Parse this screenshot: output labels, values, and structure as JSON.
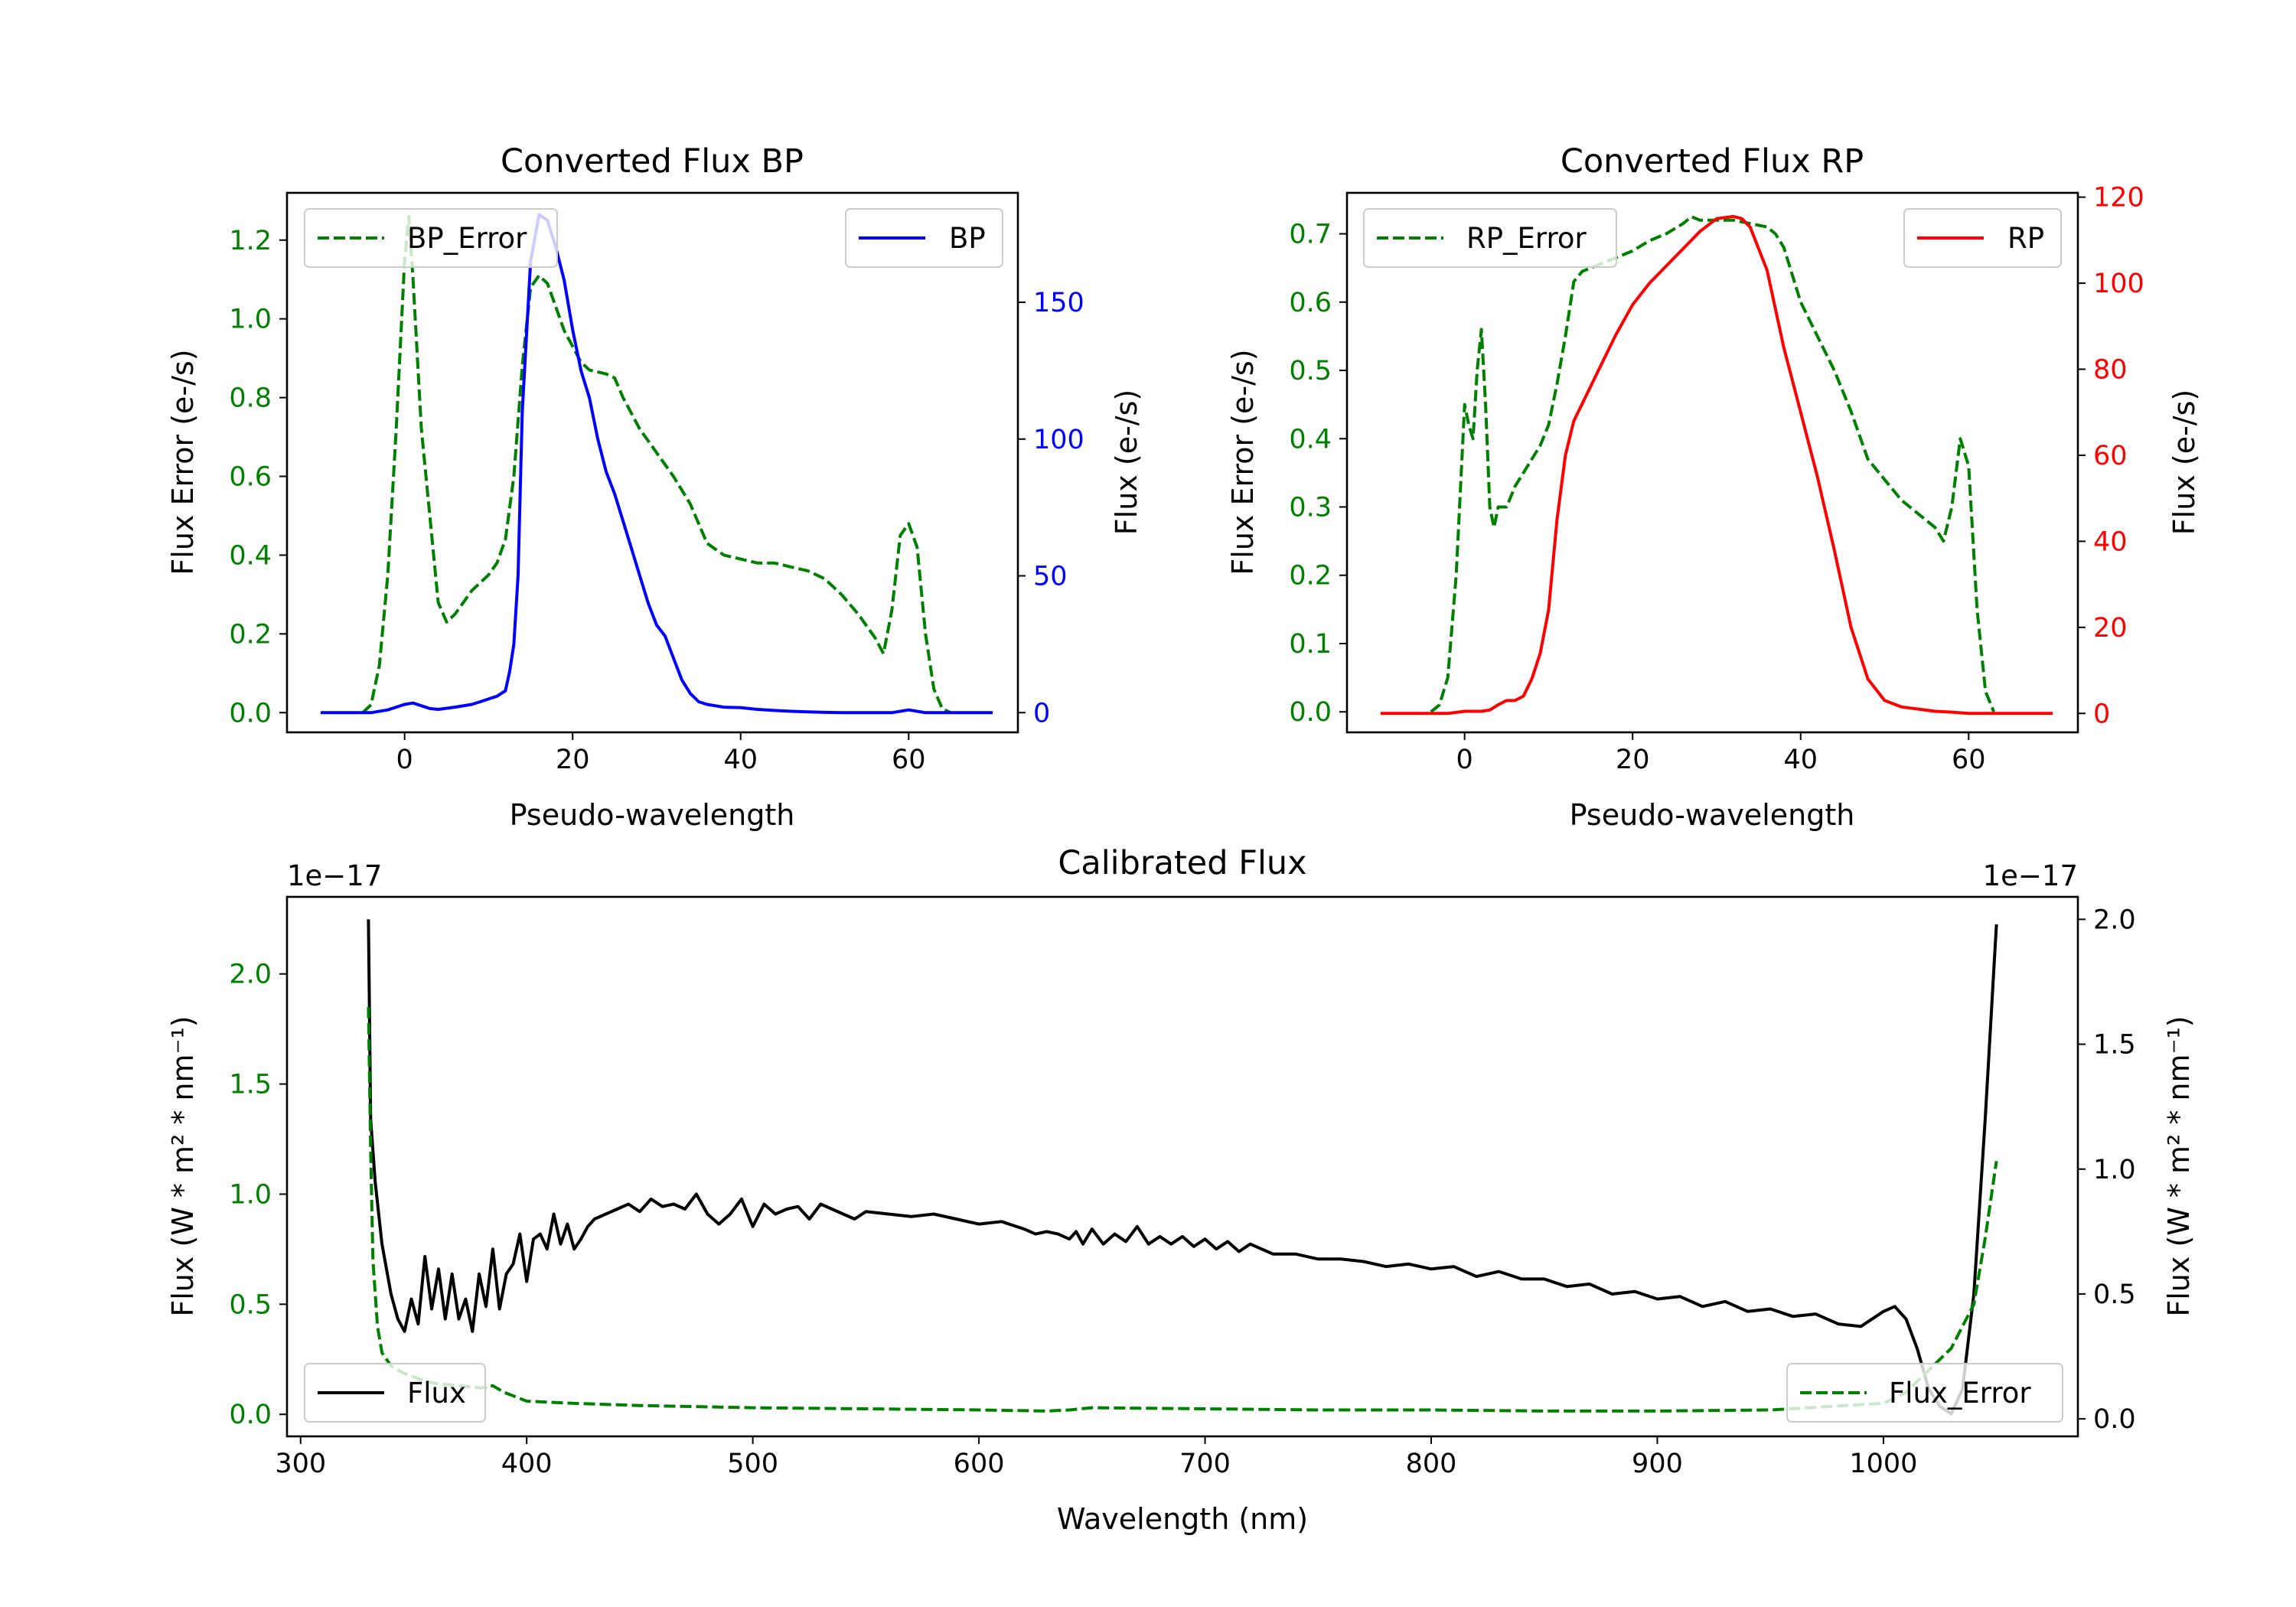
{
  "colors": {
    "error": "#008000",
    "bp": "#0000ff",
    "rp": "#ff0000",
    "flux": "#000000",
    "text": "#000000"
  },
  "chart_data": [
    {
      "id": "bp",
      "type": "line",
      "title": "Converted Flux BP",
      "xlabel": "Pseudo-wavelength",
      "ylabel_left": "Flux Error (e-/s)",
      "ylabel_right": "Flux (e-/s)",
      "xlim": [
        -14,
        73
      ],
      "ylim_left": [
        -0.05,
        1.32
      ],
      "ylim_right": [
        -7.2,
        190
      ],
      "xticks": [
        0,
        20,
        40,
        60
      ],
      "xtick_labels": [
        "0",
        "20",
        "40",
        "60"
      ],
      "yticks_left": [
        0.0,
        0.2,
        0.4,
        0.6,
        0.8,
        1.0,
        1.2
      ],
      "ytick_labels_left": [
        "0.0",
        "0.2",
        "0.4",
        "0.6",
        "0.8",
        "1.0",
        "1.2"
      ],
      "yticks_right": [
        0,
        50,
        100,
        150
      ],
      "ytick_labels_right": [
        "0",
        "50",
        "100",
        "150"
      ],
      "legend_left": "BP_Error",
      "legend_right": "BP",
      "series": [
        {
          "name": "BP_Error",
          "axis": "left",
          "style": "dashed",
          "color_key": "error",
          "x": [
            -5,
            -4,
            -3,
            -2,
            -1,
            0,
            0.5,
            1,
            2,
            3,
            4,
            5,
            6,
            7,
            8,
            9,
            10,
            11,
            12,
            13,
            14,
            15,
            16,
            17,
            18,
            19,
            20,
            21,
            22,
            24,
            25,
            26,
            28,
            30,
            32,
            34,
            36,
            38,
            40,
            42,
            44,
            46,
            48,
            50,
            52,
            54,
            56,
            57,
            58,
            59,
            60,
            61,
            62,
            63,
            64,
            65
          ],
          "y": [
            0.0,
            0.02,
            0.12,
            0.35,
            0.72,
            1.15,
            1.26,
            1.1,
            0.72,
            0.5,
            0.28,
            0.23,
            0.25,
            0.28,
            0.31,
            0.33,
            0.35,
            0.38,
            0.44,
            0.6,
            0.88,
            1.08,
            1.11,
            1.09,
            1.03,
            0.97,
            0.93,
            0.89,
            0.87,
            0.86,
            0.85,
            0.8,
            0.72,
            0.66,
            0.6,
            0.53,
            0.43,
            0.4,
            0.39,
            0.38,
            0.38,
            0.37,
            0.36,
            0.34,
            0.3,
            0.25,
            0.19,
            0.15,
            0.26,
            0.45,
            0.48,
            0.42,
            0.2,
            0.06,
            0.01,
            0.0
          ]
        },
        {
          "name": "BP",
          "axis": "right",
          "style": "solid",
          "color_key": "bp",
          "x": [
            -10,
            -4,
            -2,
            0,
            1,
            2,
            3,
            4,
            6,
            8,
            9,
            10,
            11,
            12,
            12.5,
            13,
            13.5,
            14,
            15,
            16,
            17,
            18,
            19,
            20,
            21,
            22,
            23,
            24,
            25,
            26,
            27,
            28,
            29,
            30,
            31,
            32,
            33,
            34,
            35,
            36,
            37,
            38,
            40,
            42,
            44,
            46,
            48,
            50,
            52,
            54,
            56,
            58,
            60,
            62,
            64,
            66,
            70
          ],
          "y": [
            0,
            0,
            1,
            3,
            3.5,
            2.5,
            1.5,
            1.2,
            2,
            3,
            4,
            5,
            6,
            8,
            15,
            25,
            50,
            110,
            165,
            182,
            180,
            170,
            158,
            140,
            125,
            115,
            100,
            88,
            80,
            70,
            60,
            50,
            40,
            32,
            28,
            20,
            12,
            7,
            4,
            3,
            2.5,
            2,
            1.8,
            1.2,
            0.8,
            0.5,
            0.3,
            0.1,
            0,
            0,
            0,
            0,
            1,
            0,
            0,
            0,
            0
          ]
        }
      ]
    },
    {
      "id": "rp",
      "type": "line",
      "title": "Converted Flux RP",
      "xlabel": "Pseudo-wavelength",
      "ylabel_left": "Flux Error (e-/s)",
      "ylabel_right": "Flux (e-/s)",
      "xlim": [
        -14,
        73
      ],
      "ylim_left": [
        -0.03,
        0.76
      ],
      "ylim_right": [
        -4.4,
        121
      ],
      "xticks": [
        0,
        20,
        40,
        60
      ],
      "xtick_labels": [
        "0",
        "20",
        "40",
        "60"
      ],
      "yticks_left": [
        0.0,
        0.1,
        0.2,
        0.3,
        0.4,
        0.5,
        0.6,
        0.7
      ],
      "ytick_labels_left": [
        "0.0",
        "0.1",
        "0.2",
        "0.3",
        "0.4",
        "0.5",
        "0.6",
        "0.7"
      ],
      "yticks_right": [
        0,
        20,
        40,
        60,
        80,
        100,
        120
      ],
      "ytick_labels_right": [
        "0",
        "20",
        "40",
        "60",
        "80",
        "100",
        "120"
      ],
      "legend_left": "RP_Error",
      "legend_right": "RP",
      "series": [
        {
          "name": "RP_Error",
          "axis": "left",
          "style": "dashed",
          "color_key": "error",
          "x": [
            -4,
            -3,
            -2,
            -1,
            0,
            0.5,
            1,
            1.5,
            2,
            2.5,
            3,
            3.5,
            4,
            5,
            6,
            7,
            8,
            9,
            10,
            11,
            12,
            13,
            14,
            15,
            16,
            18,
            20,
            22,
            24,
            26,
            27,
            28,
            30,
            32,
            34,
            36,
            37,
            38,
            40,
            42,
            44,
            46,
            48,
            50,
            52,
            54,
            55,
            56,
            57,
            58,
            59,
            60,
            61,
            62,
            63
          ],
          "y": [
            0.0,
            0.01,
            0.05,
            0.2,
            0.45,
            0.42,
            0.4,
            0.5,
            0.56,
            0.45,
            0.3,
            0.27,
            0.3,
            0.3,
            0.33,
            0.35,
            0.37,
            0.39,
            0.42,
            0.48,
            0.55,
            0.63,
            0.645,
            0.65,
            0.655,
            0.665,
            0.675,
            0.69,
            0.7,
            0.715,
            0.725,
            0.72,
            0.72,
            0.72,
            0.715,
            0.71,
            0.7,
            0.68,
            0.6,
            0.55,
            0.5,
            0.44,
            0.37,
            0.34,
            0.31,
            0.29,
            0.28,
            0.27,
            0.25,
            0.3,
            0.4,
            0.36,
            0.15,
            0.03,
            0.0
          ]
        },
        {
          "name": "RP",
          "axis": "right",
          "style": "solid",
          "color_key": "rp",
          "x": [
            -10,
            -4,
            -2,
            0,
            1,
            2,
            3,
            4,
            5,
            6,
            7,
            8,
            9,
            10,
            11,
            12,
            13,
            14,
            16,
            18,
            20,
            22,
            24,
            26,
            28,
            30,
            32,
            33,
            34,
            36,
            38,
            40,
            42,
            44,
            46,
            48,
            50,
            52,
            54,
            56,
            58,
            60,
            62,
            66,
            70
          ],
          "y": [
            0,
            0,
            0,
            0.5,
            0.5,
            0.5,
            0.8,
            2,
            3,
            3,
            4,
            8,
            14,
            24,
            45,
            60,
            68,
            72,
            80,
            88,
            95,
            100,
            104,
            108,
            112,
            115,
            115.5,
            115,
            113,
            103,
            85,
            70,
            55,
            38,
            20,
            8,
            3,
            1.5,
            1,
            0.5,
            0.3,
            0,
            0,
            0,
            0
          ]
        }
      ]
    },
    {
      "id": "calibrated",
      "type": "line",
      "title": "Calibrated Flux",
      "xlabel": "Wavelength (nm)",
      "ylabel_left": "Flux (W * m² * nm⁻¹)",
      "ylabel_right": "Flux (W * m² * nm⁻¹)",
      "offset_left": "1e−17",
      "offset_right": "1e−17",
      "xlim": [
        294,
        1086
      ],
      "ylim_left": [
        -0.1,
        2.35
      ],
      "ylim_right": [
        -0.07,
        2.09
      ],
      "xticks": [
        300,
        400,
        500,
        600,
        700,
        800,
        900,
        1000
      ],
      "xtick_labels": [
        "300",
        "400",
        "500",
        "600",
        "700",
        "800",
        "900",
        "1000"
      ],
      "yticks_left": [
        0.0,
        0.5,
        1.0,
        1.5,
        2.0
      ],
      "ytick_labels_left": [
        "0.0",
        "0.5",
        "1.0",
        "1.5",
        "2.0"
      ],
      "yticks_right": [
        0.0,
        0.5,
        1.0,
        1.5,
        2.0
      ],
      "ytick_labels_right": [
        "0.0",
        "0.5",
        "1.0",
        "1.5",
        "2.0"
      ],
      "legend_left": "Flux",
      "legend_right": "Flux_Error",
      "series": [
        {
          "name": "Flux",
          "axis": "right",
          "style": "solid",
          "color_key": "flux",
          "x": [
            330,
            331,
            333,
            336,
            340,
            343,
            346,
            349,
            352,
            355,
            358,
            361,
            364,
            367,
            370,
            373,
            376,
            379,
            382,
            385,
            388,
            391,
            394,
            397,
            400,
            403,
            406,
            409,
            412,
            415,
            418,
            421,
            424,
            427,
            430,
            435,
            440,
            445,
            450,
            455,
            460,
            465,
            470,
            475,
            480,
            485,
            490,
            495,
            500,
            505,
            510,
            515,
            520,
            525,
            530,
            535,
            540,
            545,
            550,
            560,
            570,
            580,
            590,
            600,
            610,
            620,
            625,
            630,
            635,
            640,
            643,
            646,
            650,
            655,
            660,
            665,
            670,
            675,
            680,
            685,
            690,
            695,
            700,
            705,
            710,
            715,
            720,
            730,
            740,
            750,
            760,
            770,
            780,
            790,
            800,
            810,
            820,
            830,
            840,
            850,
            860,
            870,
            880,
            890,
            900,
            910,
            920,
            930,
            940,
            950,
            960,
            970,
            980,
            990,
            1000,
            1005,
            1010,
            1015,
            1020,
            1025,
            1030,
            1035,
            1040,
            1045,
            1050
          ],
          "y": [
            2.0,
            1.2,
            0.95,
            0.7,
            0.5,
            0.4,
            0.35,
            0.48,
            0.38,
            0.65,
            0.44,
            0.6,
            0.4,
            0.58,
            0.4,
            0.48,
            0.35,
            0.58,
            0.45,
            0.68,
            0.44,
            0.58,
            0.62,
            0.74,
            0.55,
            0.72,
            0.74,
            0.68,
            0.82,
            0.7,
            0.78,
            0.68,
            0.72,
            0.77,
            0.8,
            0.82,
            0.84,
            0.86,
            0.83,
            0.88,
            0.85,
            0.86,
            0.84,
            0.9,
            0.82,
            0.78,
            0.82,
            0.88,
            0.77,
            0.86,
            0.82,
            0.84,
            0.85,
            0.8,
            0.86,
            0.84,
            0.82,
            0.8,
            0.83,
            0.82,
            0.81,
            0.82,
            0.8,
            0.78,
            0.79,
            0.76,
            0.74,
            0.75,
            0.74,
            0.72,
            0.75,
            0.7,
            0.76,
            0.7,
            0.74,
            0.71,
            0.77,
            0.7,
            0.73,
            0.7,
            0.73,
            0.69,
            0.72,
            0.68,
            0.71,
            0.67,
            0.7,
            0.66,
            0.66,
            0.64,
            0.64,
            0.63,
            0.61,
            0.62,
            0.6,
            0.61,
            0.57,
            0.59,
            0.56,
            0.56,
            0.53,
            0.54,
            0.5,
            0.51,
            0.48,
            0.49,
            0.45,
            0.47,
            0.43,
            0.44,
            0.41,
            0.42,
            0.38,
            0.37,
            0.43,
            0.45,
            0.4,
            0.28,
            0.12,
            0.05,
            0.02,
            0.12,
            0.5,
            1.2,
            1.98
          ]
        },
        {
          "name": "Flux_Error",
          "axis": "left",
          "style": "dashed",
          "color_key": "error",
          "x": [
            330,
            331,
            332,
            334,
            336,
            340,
            345,
            350,
            355,
            360,
            370,
            380,
            385,
            390,
            400,
            420,
            450,
            500,
            550,
            600,
            630,
            640,
            650,
            700,
            750,
            800,
            850,
            900,
            950,
            1000,
            1010,
            1020,
            1030,
            1035,
            1040,
            1045,
            1050
          ],
          "y": [
            1.85,
            1.2,
            0.7,
            0.4,
            0.28,
            0.22,
            0.19,
            0.17,
            0.15,
            0.14,
            0.13,
            0.12,
            0.13,
            0.1,
            0.06,
            0.05,
            0.04,
            0.03,
            0.025,
            0.02,
            0.015,
            0.02,
            0.03,
            0.025,
            0.02,
            0.02,
            0.015,
            0.015,
            0.02,
            0.05,
            0.1,
            0.2,
            0.3,
            0.4,
            0.5,
            0.8,
            1.15
          ]
        }
      ]
    }
  ]
}
